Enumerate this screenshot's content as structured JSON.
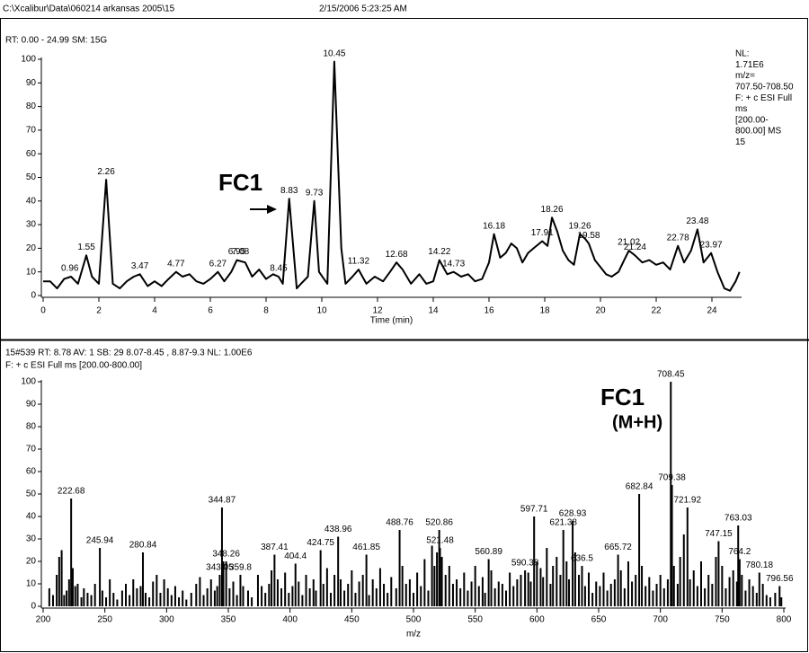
{
  "header": {
    "path": "C:\\Xcalibur\\Data\\060214 arkansas 2005\\15",
    "timestamp": "2/15/2006 5:23:25 AM"
  },
  "chart_data": [
    {
      "type": "line",
      "subtitle": [
        "RT: 0.00 - 24.99 SM: 15G"
      ],
      "info": [
        "NL:",
        "1.71E6",
        "m/z=",
        "707.50-708.50",
        "F: + c ESI Full",
        "ms",
        "[200.00-",
        "800.00]  MS",
        "15"
      ],
      "annotation": [
        "FC1"
      ],
      "xlabel": "Time (min)",
      "color": "#000000",
      "x": [
        0,
        0.25,
        0.5,
        0.75,
        1.0,
        1.25,
        1.5,
        1.55,
        1.75,
        2.0,
        2.26,
        2.5,
        2.75,
        3.0,
        3.25,
        3.47,
        3.75,
        4.0,
        4.25,
        4.5,
        4.77,
        5.0,
        5.25,
        5.5,
        5.75,
        6.0,
        6.27,
        6.5,
        6.75,
        6.95,
        7.25,
        7.5,
        7.75,
        8.0,
        8.25,
        8.45,
        8.6,
        8.83,
        9.1,
        9.25,
        9.5,
        9.73,
        9.9,
        10.2,
        10.45,
        10.7,
        10.85,
        11.1,
        11.32,
        11.6,
        11.9,
        12.2,
        12.45,
        12.68,
        12.9,
        13.2,
        13.5,
        13.75,
        14.0,
        14.22,
        14.5,
        14.73,
        15.0,
        15.25,
        15.5,
        15.75,
        16.0,
        16.18,
        16.4,
        16.6,
        16.8,
        17.0,
        17.2,
        17.4,
        17.6,
        17.91,
        18.1,
        18.26,
        18.45,
        18.65,
        18.85,
        19.05,
        19.26,
        19.45,
        19.58,
        19.8,
        20.0,
        20.2,
        20.4,
        20.65,
        20.85,
        21.02,
        21.24,
        21.5,
        21.75,
        22.0,
        22.25,
        22.5,
        22.78,
        23.0,
        23.25,
        23.48,
        23.7,
        23.97,
        24.2,
        24.45,
        24.65,
        24.85,
        24.99
      ],
      "values": [
        6,
        6,
        3,
        7,
        8,
        5,
        15,
        17,
        8,
        5,
        49,
        5,
        3,
        6,
        8,
        9,
        4,
        6,
        4,
        7,
        10,
        8,
        9,
        6,
        5,
        7,
        10,
        6,
        10,
        15,
        14,
        8,
        11,
        7,
        9,
        8,
        5,
        41,
        3,
        5,
        8,
        40,
        10,
        5,
        99,
        20,
        5,
        8,
        11,
        5,
        8,
        6,
        10,
        14,
        11,
        5,
        9,
        5,
        6,
        15,
        9,
        10,
        8,
        9,
        6,
        7,
        14,
        26,
        16,
        18,
        22,
        20,
        14,
        18,
        20,
        23,
        21,
        33,
        27,
        19,
        15,
        13,
        26,
        24,
        22,
        15,
        12,
        9,
        8,
        10,
        15,
        19,
        17,
        14,
        15,
        13,
        14,
        11,
        21,
        14,
        19,
        28,
        14,
        18,
        10,
        3,
        2,
        6,
        10
      ],
      "peak_labels": [
        {
          "x": 0.96,
          "y": 8
        },
        {
          "x": 1.55,
          "y": 17
        },
        {
          "x": 2.26,
          "y": 49
        },
        {
          "x": 3.47,
          "y": 9
        },
        {
          "x": 4.77,
          "y": 10
        },
        {
          "x": 6.27,
          "y": 10
        },
        {
          "x": 6.95,
          "y": 15
        },
        {
          "x": 7.08,
          "y": 15
        },
        {
          "x": 8.45,
          "y": 8
        },
        {
          "x": 8.83,
          "y": 41
        },
        {
          "x": 9.73,
          "y": 40
        },
        {
          "x": 10.45,
          "y": 99
        },
        {
          "x": 11.32,
          "y": 11
        },
        {
          "x": 12.68,
          "y": 14
        },
        {
          "x": 14.22,
          "y": 15
        },
        {
          "x": 14.73,
          "y": 10
        },
        {
          "x": 16.18,
          "y": 26
        },
        {
          "x": 17.91,
          "y": 23
        },
        {
          "x": 18.26,
          "y": 33
        },
        {
          "x": 19.26,
          "y": 26
        },
        {
          "x": 19.58,
          "y": 22
        },
        {
          "x": 21.02,
          "y": 19
        },
        {
          "x": 21.24,
          "y": 17
        },
        {
          "x": 22.78,
          "y": 21
        },
        {
          "x": 23.48,
          "y": 28
        },
        {
          "x": 23.97,
          "y": 18
        }
      ],
      "xlim": [
        0,
        25
      ],
      "xticks": [
        0,
        2,
        4,
        6,
        8,
        10,
        12,
        14,
        16,
        18,
        20,
        22,
        24
      ],
      "ylim": [
        0,
        100
      ],
      "yticks": [
        0,
        10,
        20,
        30,
        40,
        50,
        60,
        70,
        80,
        90,
        100
      ]
    },
    {
      "type": "bar",
      "subtitle": [
        "15#539  RT: 8.78  AV: 1  SB: 29  8.07-8.45 , 8.87-9.3  NL: 1.00E6",
        "F: + c ESI Full ms [200.00-800.00]"
      ],
      "annotation": [
        "FC1",
        "(M+H)"
      ],
      "xlabel": "m/z",
      "color": "#000000",
      "labeled_peaks": {
        "x": [
          222.68,
          245.94,
          280.84,
          343.05,
          344.87,
          348.26,
          359.8,
          387.41,
          404.4,
          424.75,
          438.96,
          461.85,
          488.76,
          520.86,
          521.48,
          560.89,
          590.38,
          597.71,
          621.38,
          628.93,
          636.5,
          665.72,
          682.84,
          708.45,
          709.38,
          721.92,
          747.15,
          763.03,
          764.2,
          780.18,
          796.56
        ],
        "values": [
          48,
          26,
          24,
          14,
          44,
          20,
          14,
          23,
          19,
          25,
          31,
          23,
          34,
          34,
          26,
          21,
          16,
          40,
          34,
          38,
          18,
          23,
          50,
          100,
          54,
          44,
          29,
          36,
          21,
          15,
          9
        ]
      },
      "other_peaks": {
        "x": [
          205,
          208,
          211,
          213,
          215,
          217,
          219,
          221,
          224,
          226,
          228,
          231,
          233,
          236,
          239,
          242,
          248,
          251,
          254,
          257,
          260,
          264,
          267,
          270,
          273,
          276,
          279,
          283,
          286,
          289,
          292,
          295,
          298,
          301,
          304,
          307,
          310,
          313,
          316,
          320,
          324,
          327,
          330,
          333,
          336,
          339,
          341,
          346,
          351,
          354,
          357,
          362,
          366,
          369,
          374,
          377,
          380,
          383,
          385,
          390,
          393,
          396,
          399,
          402,
          407,
          410,
          413,
          416,
          419,
          421,
          427,
          430,
          433,
          436,
          441,
          444,
          447,
          450,
          453,
          456,
          459,
          464,
          467,
          470,
          473,
          476,
          479,
          482,
          486,
          491,
          494,
          497,
          500,
          503,
          506,
          509,
          512,
          515,
          517,
          519,
          523,
          526,
          529,
          532,
          535,
          538,
          541,
          544,
          547,
          550,
          553,
          556,
          558,
          563,
          566,
          569,
          572,
          575,
          578,
          581,
          584,
          587,
          593,
          595,
          600,
          603,
          605,
          608,
          611,
          613,
          616,
          619,
          624,
          626,
          631,
          634,
          639,
          642,
          645,
          648,
          651,
          654,
          657,
          660,
          663,
          668,
          671,
          674,
          677,
          680,
          685,
          688,
          691,
          694,
          697,
          700,
          703,
          706,
          711,
          714,
          716,
          719,
          724,
          727,
          730,
          733,
          736,
          739,
          742,
          745,
          750,
          753,
          756,
          759,
          762,
          766,
          769,
          772,
          775,
          778,
          783,
          786,
          789,
          793,
          798
        ],
        "values": [
          8,
          5,
          14,
          22,
          25,
          5,
          7,
          12,
          17,
          9,
          10,
          4,
          8,
          6,
          5,
          10,
          7,
          4,
          12,
          6,
          3,
          7,
          10,
          5,
          12,
          8,
          9,
          6,
          4,
          11,
          14,
          6,
          12,
          8,
          5,
          9,
          4,
          7,
          3,
          6,
          10,
          13,
          5,
          8,
          12,
          7,
          9,
          20,
          8,
          11,
          5,
          9,
          7,
          4,
          14,
          9,
          6,
          10,
          16,
          12,
          8,
          15,
          6,
          9,
          11,
          5,
          14,
          8,
          12,
          7,
          10,
          17,
          6,
          14,
          12,
          7,
          10,
          16,
          6,
          11,
          14,
          5,
          12,
          8,
          17,
          10,
          6,
          13,
          8,
          18,
          10,
          12,
          6,
          15,
          9,
          21,
          7,
          27,
          18,
          24,
          22,
          14,
          18,
          10,
          12,
          8,
          15,
          7,
          11,
          18,
          9,
          13,
          6,
          16,
          8,
          11,
          10,
          7,
          15,
          9,
          12,
          14,
          15,
          11,
          20,
          17,
          13,
          26,
          10,
          18,
          22,
          14,
          20,
          12,
          24,
          14,
          9,
          15,
          6,
          11,
          9,
          15,
          7,
          10,
          12,
          16,
          8,
          20,
          11,
          14,
          18,
          9,
          13,
          7,
          10,
          14,
          8,
          12,
          18,
          10,
          22,
          32,
          12,
          16,
          9,
          20,
          8,
          14,
          10,
          22,
          18,
          8,
          13,
          16,
          11,
          14,
          7,
          12,
          9,
          6,
          10,
          5,
          4,
          6,
          4
        ]
      },
      "xlim": [
        200,
        800
      ],
      "xticks": [
        200,
        250,
        300,
        350,
        400,
        450,
        500,
        550,
        600,
        650,
        700,
        750,
        800
      ],
      "ylim": [
        0,
        100
      ],
      "yticks": [
        0,
        10,
        20,
        30,
        40,
        50,
        60,
        70,
        80,
        90,
        100
      ]
    }
  ]
}
